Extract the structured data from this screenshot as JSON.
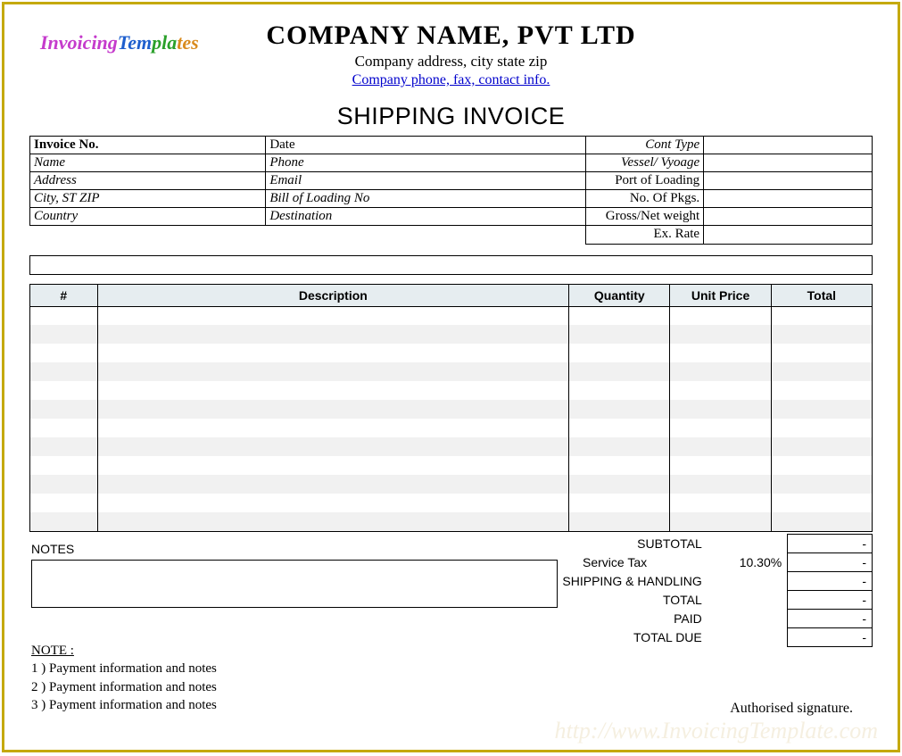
{
  "logo": {
    "seg1": "Invoicing",
    "seg2": "Tem",
    "seg3": "pla",
    "seg4": "tes"
  },
  "header": {
    "company_name": "COMPANY NAME,  PVT LTD",
    "company_addr": "Company address, city state zip",
    "company_contact": "Company phone, fax, contact info."
  },
  "doc_title": "SHIPPING INVOICE",
  "meta": {
    "col_widths_pct": [
      28,
      38,
      14,
      20
    ],
    "rows": [
      [
        {
          "label": "Invoice No.",
          "bold": true
        },
        {
          "label": "Date",
          "align": "left"
        },
        {
          "label": "Cont Type",
          "ital": true,
          "align": "right"
        },
        {
          "label": ""
        }
      ],
      [
        {
          "label": "Name",
          "ital": true
        },
        {
          "label": "Phone",
          "ital": true
        },
        {
          "label": "Vessel/ Vyoage",
          "ital": true,
          "align": "right"
        },
        {
          "label": ""
        }
      ],
      [
        {
          "label": "Address",
          "ital": true
        },
        {
          "label": "Email",
          "ital": true
        },
        {
          "label": "Port of Loading",
          "align": "right"
        },
        {
          "label": ""
        }
      ],
      [
        {
          "label": "City, ST ZIP",
          "ital": true
        },
        {
          "label": "Bill of Loading No",
          "ital": true
        },
        {
          "label": "No. Of Pkgs.",
          "align": "right"
        },
        {
          "label": ""
        }
      ],
      [
        {
          "label": "Country",
          "ital": true
        },
        {
          "label": "Destination",
          "ital": true
        },
        {
          "label": "Gross/Net weight",
          "align": "right"
        },
        {
          "label": ""
        }
      ]
    ],
    "exrate_label": "Ex. Rate"
  },
  "items": {
    "columns": [
      {
        "label": "#",
        "width_pct": 8
      },
      {
        "label": "Description",
        "width_pct": 56
      },
      {
        "label": "Quantity",
        "width_pct": 12
      },
      {
        "label": "Unit Price",
        "width_pct": 12
      },
      {
        "label": "Total",
        "width_pct": 12
      }
    ],
    "row_count": 12,
    "stripe_color": "#f1f1f1",
    "header_bg": "#e6edf0"
  },
  "totals": {
    "rows": [
      {
        "label": "SUBTOTAL",
        "aux": "",
        "value": "-"
      },
      {
        "label": "Service Tax",
        "aux": "10.30%",
        "value": "-",
        "label_align": "left"
      },
      {
        "label": "SHIPPING & HANDLING",
        "aux": "",
        "value": "-"
      },
      {
        "label": "TOTAL",
        "aux": "",
        "value": "-"
      },
      {
        "label": "PAID",
        "aux": "",
        "value": "-"
      },
      {
        "label": "TOTAL DUE",
        "aux": "",
        "value": "-"
      }
    ]
  },
  "notes_label": "NOTES",
  "footnotes": {
    "header": "NOTE :",
    "lines": [
      "1 )  Payment information and notes",
      "2 )  Payment information and notes",
      "3 )  Payment information and notes"
    ]
  },
  "auth_signature": "Authorised signature.",
  "watermark": "http://www.InvoicingTemplate.com"
}
